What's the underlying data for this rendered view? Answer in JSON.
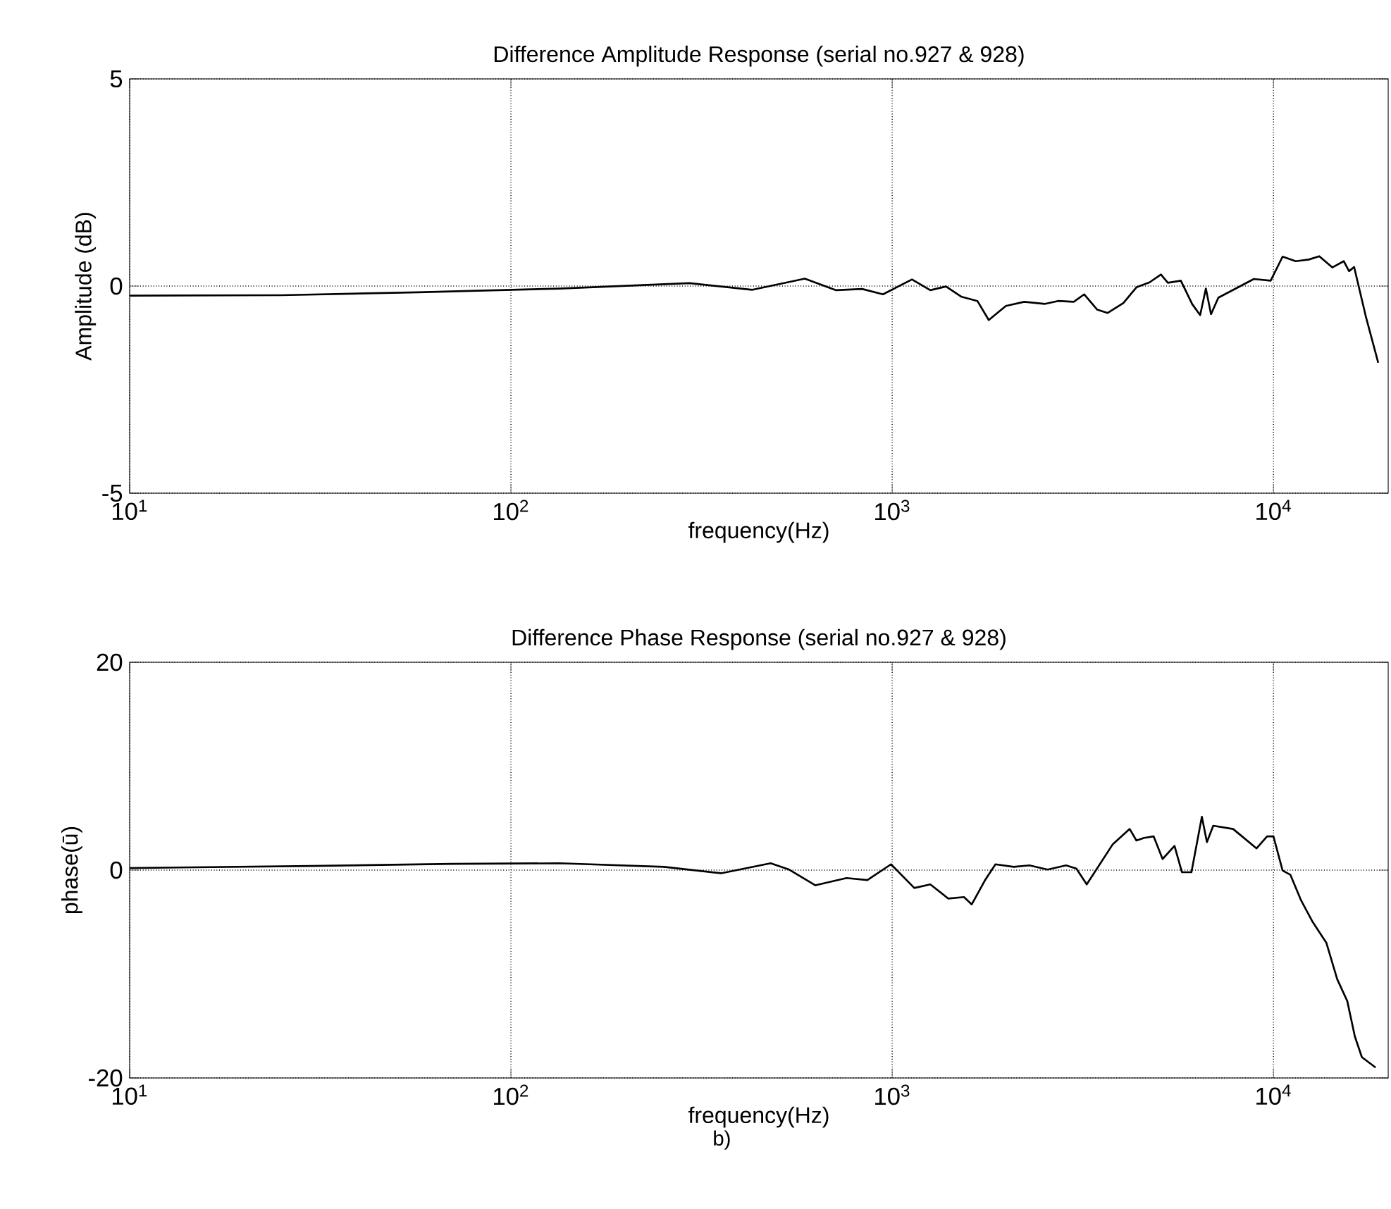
{
  "chart_data": [
    {
      "type": "line",
      "title": "Difference Amplitude Response (serial no.927 & 928)",
      "xlabel": "frequency(Hz)",
      "ylabel": "Amplitude (dB)",
      "x": [
        10,
        25,
        57,
        134,
        294,
        430,
        590,
        713,
        834,
        946,
        1127,
        1259,
        1384,
        1521,
        1673,
        1792,
        1987,
        2220,
        2518,
        2723,
        2994,
        3190,
        3451,
        3675,
        4040,
        4371,
        4731,
        5070,
        5285,
        5716,
        6126,
        6424,
        6650,
        6860,
        7171,
        8079,
        8884,
        9833,
        10570,
        11440,
        12380,
        13190,
        14270,
        15290,
        15790,
        16280,
        17500,
        18830
      ],
      "values": [
        -0.23,
        -0.22,
        -0.15,
        -0.06,
        0.07,
        -0.09,
        0.18,
        -0.1,
        -0.07,
        -0.2,
        0.16,
        -0.1,
        -0.01,
        -0.26,
        -0.36,
        -0.82,
        -0.48,
        -0.38,
        -0.43,
        -0.36,
        -0.38,
        -0.2,
        -0.57,
        -0.65,
        -0.41,
        -0.03,
        0.09,
        0.28,
        0.08,
        0.13,
        -0.44,
        -0.7,
        -0.06,
        -0.68,
        -0.28,
        -0.03,
        0.17,
        0.13,
        0.71,
        0.6,
        0.64,
        0.72,
        0.45,
        0.6,
        0.36,
        0.46,
        -0.76,
        -1.85
      ],
      "color": "#000000",
      "line_style": "solid",
      "log": "x",
      "grid": true,
      "xlim": [
        10,
        20000
      ],
      "ylim": [
        -5,
        5
      ],
      "xticks": [
        {
          "value": 10,
          "label": "10$^{1}$"
        },
        {
          "value": 100,
          "label": "10$^{2}$"
        },
        {
          "value": 1000,
          "label": "10$^{3}$"
        },
        {
          "value": 10000,
          "label": "10$^{4}$"
        }
      ],
      "yticks": [
        -5,
        0,
        5
      ]
    },
    {
      "type": "line",
      "title": "Difference Phase Response (serial no.927 & 928)",
      "xlabel": "frequency(Hz)",
      "ylabel": "phase(ū)",
      "annotations": [
        "b)"
      ],
      "x": [
        10,
        30,
        70,
        134,
        252,
        356,
        480,
        537,
        629,
        759,
        861,
        993,
        1143,
        1259,
        1404,
        1543,
        1617,
        1750,
        1866,
        2084,
        2291,
        2557,
        2858,
        3041,
        3238,
        3792,
        4197,
        4371,
        4582,
        4850,
        5120,
        5502,
        5754,
        6095,
        6491,
        6692,
        6952,
        7839,
        9030,
        9624,
        10000,
        10570,
        11080,
        11810,
        12680,
        13770,
        14700,
        15620,
        16350,
        17060,
        18540
      ],
      "values": [
        0.2,
        0.4,
        0.6,
        0.66,
        0.31,
        -0.3,
        0.66,
        0.05,
        -1.46,
        -0.76,
        -0.96,
        0.56,
        -1.72,
        -1.37,
        -2.74,
        -2.59,
        -3.3,
        -1.0,
        0.56,
        0.31,
        0.46,
        0.05,
        0.46,
        0.15,
        -1.37,
        2.5,
        3.96,
        2.85,
        3.1,
        3.25,
        1.07,
        2.33,
        -0.2,
        -0.2,
        5.13,
        2.7,
        4.27,
        3.96,
        2.09,
        3.25,
        3.25,
        -0.04,
        -0.45,
        -2.89,
        -5,
        -7,
        -10.5,
        -12.6,
        -16,
        -18,
        -19
      ],
      "color": "#000000",
      "line_style": "solid",
      "log": "x",
      "grid": true,
      "xlim": [
        10,
        20000
      ],
      "ylim": [
        -20,
        20
      ],
      "xticks": [
        {
          "value": 10,
          "label": "10$^{1}$"
        },
        {
          "value": 100,
          "label": "10$^{2}$"
        },
        {
          "value": 1000,
          "label": "10$^{3}$"
        },
        {
          "value": 10000,
          "label": "10$^{4}$"
        }
      ],
      "yticks": [
        -20,
        0,
        20
      ]
    }
  ]
}
